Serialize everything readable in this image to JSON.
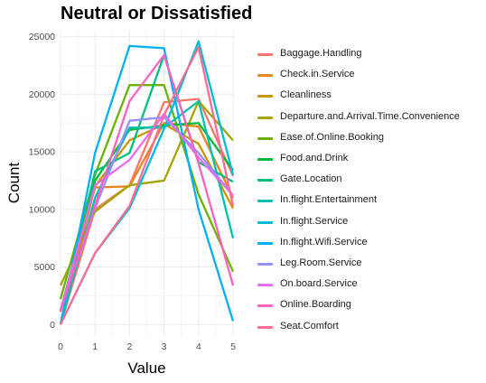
{
  "chart_data": {
    "type": "line",
    "title": "Neutral or Dissatisfied",
    "xlabel": "Value",
    "ylabel": "Count",
    "x": [
      0,
      1,
      2,
      3,
      4,
      5
    ],
    "xlim": [
      0,
      5
    ],
    "ylim": [
      0,
      25000
    ],
    "xticks": [
      "0",
      "1",
      "2",
      "3",
      "4",
      "5"
    ],
    "yticks": [
      "0",
      "5000",
      "10000",
      "15000",
      "20000",
      "25000"
    ],
    "grid": true,
    "legend_position": "right",
    "series": [
      {
        "name": "Baggage.Handling",
        "color": "#F8766D",
        "values": [
          0,
          10000,
          12100,
          19300,
          19600,
          12900
        ]
      },
      {
        "name": "Check.in.Service",
        "color": "#E7861B",
        "values": [
          1100,
          11900,
          12000,
          17500,
          17200,
          11000
        ]
      },
      {
        "name": "Cleanliness",
        "color": "#C99800",
        "values": [
          0,
          12000,
          16000,
          17400,
          15700,
          10100
        ]
      },
      {
        "name": "Departure.and.Arrival.Time.Convenience",
        "color": "#A3A500",
        "values": [
          3400,
          9800,
          12100,
          12500,
          19400,
          16000
        ]
      },
      {
        "name": "Ease.of.Online.Booking",
        "color": "#6BB100",
        "values": [
          2200,
          13000,
          20800,
          20800,
          11300,
          4600
        ]
      },
      {
        "name": "Food.and.Drink",
        "color": "#00BA38",
        "values": [
          1200,
          12500,
          16900,
          17300,
          17500,
          13400
        ]
      },
      {
        "name": "Gate.Location",
        "color": "#00BF7D",
        "values": [
          0,
          13300,
          14900,
          23400,
          14100,
          12400
        ]
      },
      {
        "name": "In.flight.Entertainment",
        "color": "#00C0AF",
        "values": [
          0,
          11000,
          17100,
          17100,
          19400,
          7500
        ]
      },
      {
        "name": "In.flight.Service",
        "color": "#00BCD8",
        "values": [
          0,
          6200,
          10100,
          17000,
          24600,
          13000
        ]
      },
      {
        "name": "In.flight.Wifi.Service",
        "color": "#00B0F6",
        "values": [
          0,
          14900,
          24200,
          24000,
          10000,
          300
        ]
      },
      {
        "name": "Leg.Room.Service",
        "color": "#9590FF",
        "values": [
          1200,
          10100,
          17700,
          18000,
          14900,
          11200
        ]
      },
      {
        "name": "On.board.Service",
        "color": "#E76BF3",
        "values": [
          1200,
          12100,
          14300,
          18300,
          14500,
          11200
        ]
      },
      {
        "name": "Online.Boarding",
        "color": "#FF62BC",
        "values": [
          1200,
          10300,
          19400,
          23400,
          14000,
          3400
        ]
      },
      {
        "name": "Seat.Comfort",
        "color": "#FF6C91",
        "values": [
          0,
          6200,
          10300,
          18200,
          24100,
          10300
        ]
      }
    ]
  }
}
